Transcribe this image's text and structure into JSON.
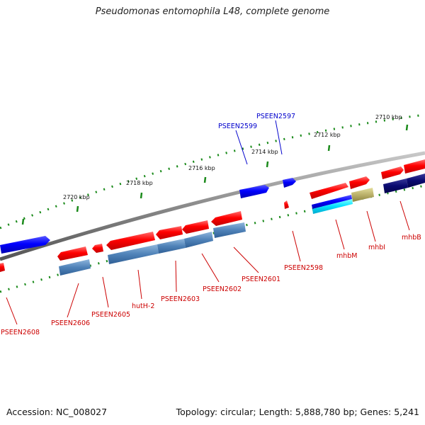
{
  "title": "Pseudomonas entomophila L48, complete genome",
  "footer": {
    "accession": "Accession: NC_008027",
    "summary": "Topology: circular; Length: 5,888,780 bp; Genes: 5,241"
  },
  "ticks": [
    {
      "label": "2710 kbp"
    },
    {
      "label": "2712 kbp"
    },
    {
      "label": "2714 kbp"
    },
    {
      "label": "2716 kbp"
    },
    {
      "label": "2718 kbp"
    },
    {
      "label": "2720 kbp"
    }
  ],
  "genes": [
    {
      "label": "PSEEN2597",
      "color": "#0000cc"
    },
    {
      "label": "PSEEN2599",
      "color": "#0000cc"
    },
    {
      "label": "PSEEN2598",
      "color": "#cc0000"
    },
    {
      "label": "PSEEN2601",
      "color": "#cc0000"
    },
    {
      "label": "PSEEN2602",
      "color": "#cc0000"
    },
    {
      "label": "PSEEN2603",
      "color": "#cc0000"
    },
    {
      "label": "hutH-2",
      "color": "#cc0000"
    },
    {
      "label": "PSEEN2605",
      "color": "#cc0000"
    },
    {
      "label": "PSEEN2606",
      "color": "#cc0000"
    },
    {
      "label": "PSEEN2608",
      "color": "#cc0000"
    },
    {
      "label": "mhbM",
      "color": "#cc0000"
    },
    {
      "label": "mhbI",
      "color": "#cc0000"
    },
    {
      "label": "mhbB",
      "color": "#cc0000"
    }
  ]
}
